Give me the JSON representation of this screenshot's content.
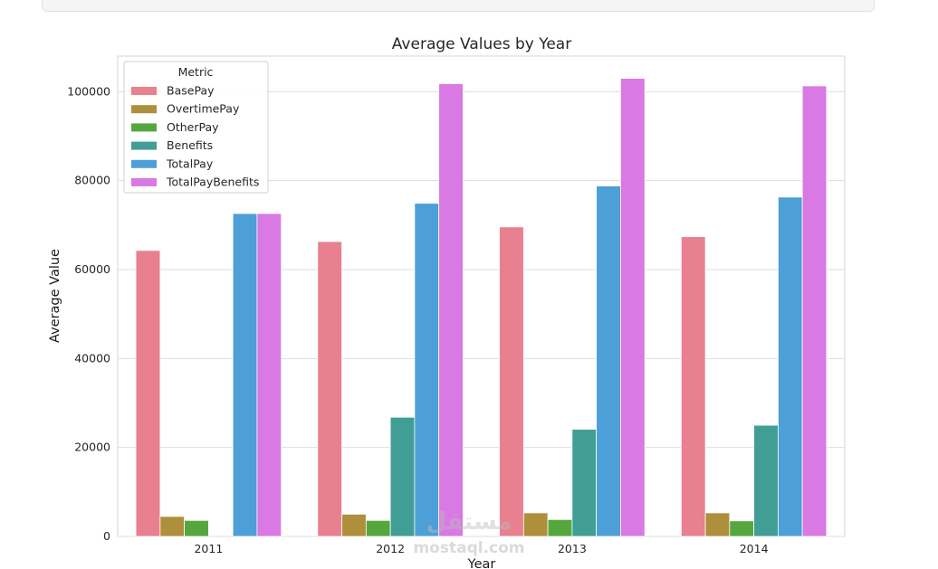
{
  "watermark": {
    "logo_text": "مستقل",
    "site": "mostaql.com"
  },
  "chart_data": {
    "type": "bar",
    "title": "Average Values by Year",
    "xlabel": "Year",
    "ylabel": "Average Value",
    "categories": [
      "2011",
      "2012",
      "2013",
      "2014"
    ],
    "ylim": [
      0,
      108000
    ],
    "yticks": [
      0,
      20000,
      40000,
      60000,
      80000,
      100000
    ],
    "ytick_labels": [
      "0",
      "20000",
      "40000",
      "60000",
      "80000",
      "100000"
    ],
    "grid": true,
    "legend": {
      "title": "Metric",
      "position": "top-left"
    },
    "series": [
      {
        "name": "BasePay",
        "color": "#e8808f",
        "values": [
          64300,
          66300,
          69600,
          67400
        ]
      },
      {
        "name": "OvertimePay",
        "color": "#ae8f3b",
        "values": [
          4500,
          5000,
          5300,
          5300
        ]
      },
      {
        "name": "OtherPay",
        "color": "#55a73d",
        "values": [
          3600,
          3600,
          3800,
          3500
        ]
      },
      {
        "name": "Benefits",
        "color": "#419e94",
        "values": [
          0,
          26800,
          24100,
          25000
        ]
      },
      {
        "name": "TotalPay",
        "color": "#4d9fd8",
        "values": [
          72600,
          74900,
          78800,
          76300
        ]
      },
      {
        "name": "TotalPayBenefits",
        "color": "#d979e3",
        "values": [
          72600,
          101800,
          103000,
          101300
        ]
      }
    ]
  }
}
